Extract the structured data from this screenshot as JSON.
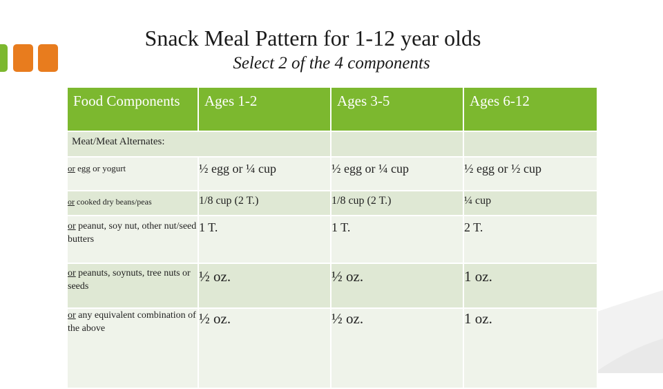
{
  "slide": {
    "title": "Snack Meal Pattern for 1-12 year olds",
    "subtitle": "Select 2 of the 4 components",
    "accent_green": "#7cb82f",
    "accent_orange": "#e87c1e"
  },
  "table": {
    "headers": [
      "Food Components",
      "Ages 1-2",
      "Ages 3-5",
      "Ages 6-12"
    ],
    "section_label": "Meat/Meat Alternates:",
    "rows": [
      {
        "prefix": "or",
        "label": " egg  or yogurt",
        "ages_1_2": "½ egg or ¼ cup",
        "ages_3_5": "½ egg or ¼ cup",
        "ages_6_12": "½  egg or ½  cup"
      },
      {
        "prefix": "or",
        "label": " cooked dry beans/peas",
        "ages_1_2": "1/8 cup (2 T.)",
        "ages_3_5": "1/8 cup (2 T.)",
        "ages_6_12": "¼ cup"
      },
      {
        "prefix": "or",
        "label": " peanut, soy nut, other nut/seed butters",
        "ages_1_2": "1 T.",
        "ages_3_5": "1 T.",
        "ages_6_12": "2 T."
      },
      {
        "prefix": "or",
        "label": " peanuts, soynuts, tree nuts or seeds",
        "ages_1_2": "½ oz.",
        "ages_3_5": "½ oz.",
        "ages_6_12": "1 oz."
      },
      {
        "prefix": "or",
        "label": " any equivalent combination of the above",
        "ages_1_2": "½ oz.",
        "ages_3_5": "½ oz.",
        "ages_6_12": "1 oz."
      }
    ]
  }
}
